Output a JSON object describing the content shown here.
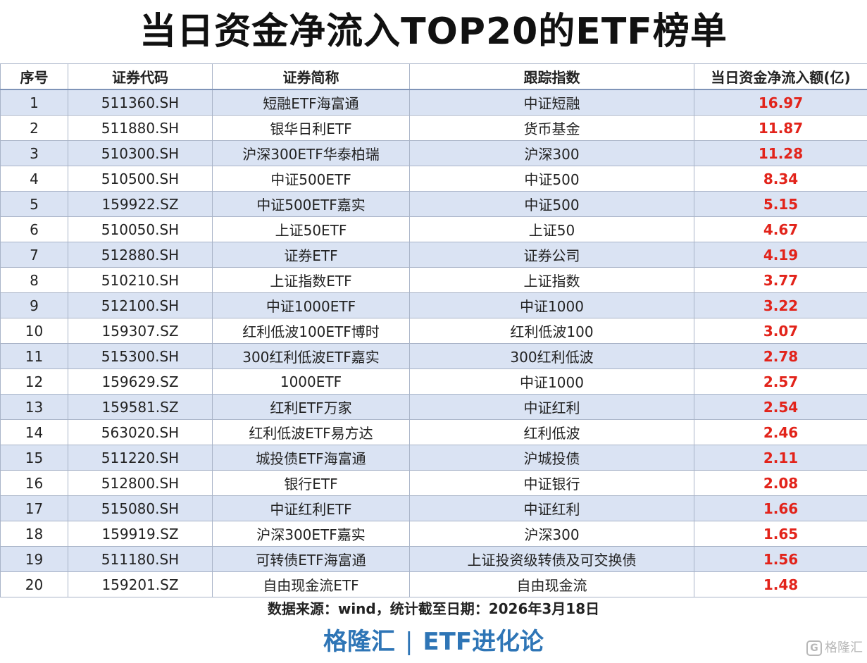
{
  "title": "当日资金净流入TOP20的ETF榜单",
  "chart_data": {
    "type": "table",
    "columns": [
      "序号",
      "证券代码",
      "证券简称",
      "跟踪指数",
      "当日资金净流入额(亿)"
    ],
    "rows": [
      [
        "1",
        "511360.SH",
        "短融ETF海富通",
        "中证短融",
        "16.97"
      ],
      [
        "2",
        "511880.SH",
        "银华日利ETF",
        "货币基金",
        "11.87"
      ],
      [
        "3",
        "510300.SH",
        "沪深300ETF华泰柏瑞",
        "沪深300",
        "11.28"
      ],
      [
        "4",
        "510500.SH",
        "中证500ETF",
        "中证500",
        "8.34"
      ],
      [
        "5",
        "159922.SZ",
        "中证500ETF嘉实",
        "中证500",
        "5.15"
      ],
      [
        "6",
        "510050.SH",
        "上证50ETF",
        "上证50",
        "4.67"
      ],
      [
        "7",
        "512880.SH",
        "证券ETF",
        "证券公司",
        "4.19"
      ],
      [
        "8",
        "510210.SH",
        "上证指数ETF",
        "上证指数",
        "3.77"
      ],
      [
        "9",
        "512100.SH",
        "中证1000ETF",
        "中证1000",
        "3.22"
      ],
      [
        "10",
        "159307.SZ",
        "红利低波100ETF博时",
        "红利低波100",
        "3.07"
      ],
      [
        "11",
        "515300.SH",
        "300红利低波ETF嘉实",
        "300红利低波",
        "2.78"
      ],
      [
        "12",
        "159629.SZ",
        "1000ETF",
        "中证1000",
        "2.57"
      ],
      [
        "13",
        "159581.SZ",
        "红利ETF万家",
        "中证红利",
        "2.54"
      ],
      [
        "14",
        "563020.SH",
        "红利低波ETF易方达",
        "红利低波",
        "2.46"
      ],
      [
        "15",
        "511220.SH",
        "城投债ETF海富通",
        "沪城投债",
        "2.11"
      ],
      [
        "16",
        "512800.SH",
        "银行ETF",
        "中证银行",
        "2.08"
      ],
      [
        "17",
        "515080.SH",
        "中证红利ETF",
        "中证红利",
        "1.66"
      ],
      [
        "18",
        "159919.SZ",
        "沪深300ETF嘉实",
        "沪深300",
        "1.65"
      ],
      [
        "19",
        "511180.SH",
        "可转债ETF海富通",
        "上证投资级转债及可交换债",
        "1.56"
      ],
      [
        "20",
        "159201.SZ",
        "自由现金流ETF",
        "自由现金流",
        "1.48"
      ]
    ],
    "amount_color": "#e2231a",
    "stripe_color": "#dae3f3"
  },
  "footer": {
    "source": "数据来源：wind，统计截至日期：2026年3月18日",
    "brand_left": "格隆汇",
    "brand_sep": "|",
    "brand_right": "ETF进化论",
    "watermark": "格隆汇",
    "brand_color": "#2e75b6"
  }
}
